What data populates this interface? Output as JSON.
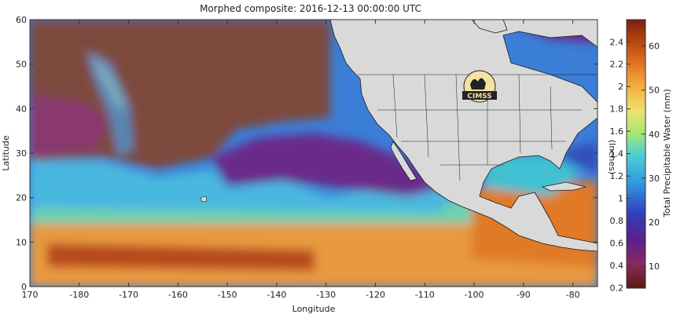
{
  "title": "Morphed composite: 2016-12-13 00:00:00 UTC",
  "x_axis": {
    "label": "Longitude",
    "ticks": [
      {
        "value": 170,
        "label": "170"
      },
      {
        "value": 180,
        "label": "-180"
      },
      {
        "value": 190,
        "label": "-170"
      },
      {
        "value": 200,
        "label": "-160"
      },
      {
        "value": 210,
        "label": "-150"
      },
      {
        "value": 220,
        "label": "-140"
      },
      {
        "value": 230,
        "label": "-130"
      },
      {
        "value": 240,
        "label": "-120"
      },
      {
        "value": 250,
        "label": "-110"
      },
      {
        "value": 260,
        "label": "-100"
      },
      {
        "value": 270,
        "label": "-90"
      },
      {
        "value": 280,
        "label": "-80"
      }
    ],
    "range": [
      170,
      285
    ]
  },
  "y_axis": {
    "label": "Latitude",
    "ticks": [
      "0",
      "10",
      "20",
      "30",
      "40",
      "50",
      "60"
    ],
    "range": [
      0,
      60
    ]
  },
  "colorbar": {
    "mm_label": "Total Precipitable Water (mm)",
    "inch_label": "(Inches)",
    "mm_range": [
      5,
      66
    ],
    "mm_ticks": [
      "10",
      "20",
      "30",
      "40",
      "50",
      "60"
    ],
    "inch_ticks": [
      "0.2",
      "0.4",
      "0.6",
      "0.8",
      "1",
      "1.2",
      "1.4",
      "1.6",
      "1.8",
      "2",
      "2.2",
      "2.4"
    ],
    "colors": [
      "#5a1a10",
      "#8a2a60",
      "#5a208a",
      "#3040c0",
      "#30a0e0",
      "#50d0d0",
      "#a8e870",
      "#f0e070",
      "#f5b040",
      "#e07020",
      "#b04010",
      "#7a2010"
    ]
  },
  "logo": {
    "text": "CIMSS",
    "icon": "cimss-logo-icon"
  },
  "colors": {
    "land": "#d9d9d9",
    "border": "#1a1a1a",
    "dry_air": "#8a5040"
  }
}
